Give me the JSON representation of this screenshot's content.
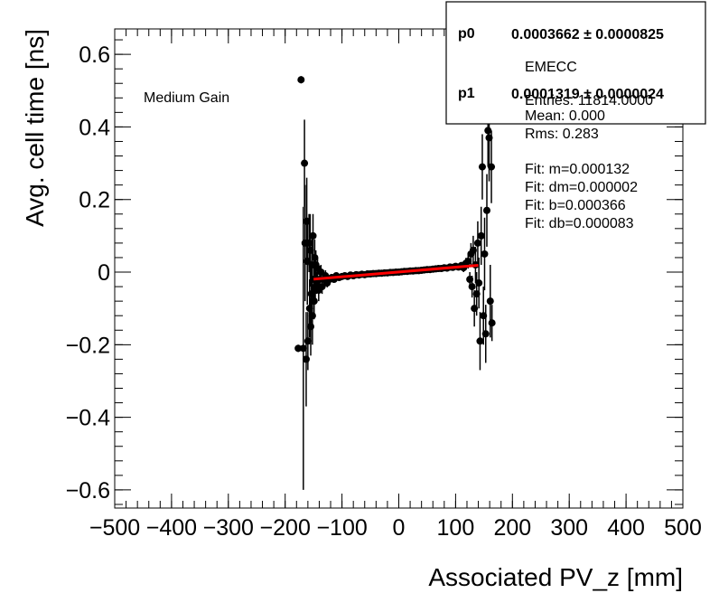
{
  "chart_data": {
    "type": "scatter",
    "title": "",
    "xlabel": "Associated PV_z [mm]",
    "ylabel": "Avg. cell time [ns]",
    "xlim": [
      -500,
      500
    ],
    "ylim": [
      -0.65,
      0.67
    ],
    "x_ticks": [
      -500,
      -400,
      -300,
      -200,
      -100,
      0,
      100,
      200,
      300,
      400,
      500
    ],
    "x_tick_labels": [
      "−500",
      "−400",
      "−300",
      "−200",
      "−100",
      "0",
      "100",
      "200",
      "300",
      "400",
      "500"
    ],
    "y_ticks": [
      -0.6,
      -0.4,
      -0.2,
      0,
      0.2,
      0.4,
      0.6
    ],
    "y_tick_labels": [
      "−0.6",
      "−0.4",
      "−0.2",
      "0",
      "0.2",
      "0.4",
      "0.6"
    ],
    "grid": false,
    "annotation": "Medium Gain",
    "series": [
      {
        "type": "points_with_errors",
        "color": "#000000",
        "points": [
          {
            "x": -177,
            "y": -0.21,
            "err": 0.01
          },
          {
            "x": -172,
            "y": 0.53,
            "err": 0.01
          },
          {
            "x": -168,
            "y": -0.21,
            "err": 0.39
          },
          {
            "x": -166,
            "y": 0.3,
            "err": 0.12
          },
          {
            "x": -165,
            "y": 0.08,
            "err": 0.16
          },
          {
            "x": -163,
            "y": -0.24,
            "err": 0.13
          },
          {
            "x": -162,
            "y": 0.14,
            "err": 0.12
          },
          {
            "x": -161,
            "y": 0.03,
            "err": 0.12
          },
          {
            "x": -160,
            "y": -0.19,
            "err": 0.08
          },
          {
            "x": -158,
            "y": 0.08,
            "err": 0.08
          },
          {
            "x": -157,
            "y": -0.1,
            "err": 0.08
          },
          {
            "x": -156,
            "y": 0.06,
            "err": 0.1
          },
          {
            "x": -155,
            "y": -0.15,
            "err": 0.08
          },
          {
            "x": -154,
            "y": -0.06,
            "err": 0.08
          },
          {
            "x": -153,
            "y": 0.02,
            "err": 0.08
          },
          {
            "x": -152,
            "y": -0.12,
            "err": 0.08
          },
          {
            "x": -151,
            "y": 0.1,
            "err": 0.06
          },
          {
            "x": -150,
            "y": -0.02,
            "err": 0.06
          },
          {
            "x": -149,
            "y": -0.08,
            "err": 0.05
          },
          {
            "x": -148,
            "y": 0.04,
            "err": 0.05
          },
          {
            "x": -147,
            "y": -0.04,
            "err": 0.04
          },
          {
            "x": -146,
            "y": 0.02,
            "err": 0.04
          },
          {
            "x": -145,
            "y": -0.03,
            "err": 0.03
          },
          {
            "x": -143,
            "y": 0.01,
            "err": 0.03
          },
          {
            "x": -141,
            "y": -0.05,
            "err": 0.03
          },
          {
            "x": -139,
            "y": -0.02,
            "err": 0.02
          },
          {
            "x": -137,
            "y": 0.0,
            "err": 0.02
          },
          {
            "x": -135,
            "y": -0.04,
            "err": 0.02
          },
          {
            "x": -132,
            "y": -0.02,
            "err": 0.015
          },
          {
            "x": -129,
            "y": -0.01,
            "err": 0.015
          },
          {
            "x": -126,
            "y": -0.03,
            "err": 0.012
          },
          {
            "x": -122,
            "y": -0.02,
            "err": 0.01
          },
          {
            "x": -118,
            "y": -0.015,
            "err": 0.01
          },
          {
            "x": -114,
            "y": -0.02,
            "err": 0.008
          },
          {
            "x": -110,
            "y": -0.01,
            "err": 0.008
          },
          {
            "x": -105,
            "y": -0.015,
            "err": 0.006
          },
          {
            "x": -100,
            "y": -0.012,
            "err": 0.006
          },
          {
            "x": -95,
            "y": -0.01,
            "err": 0.005
          },
          {
            "x": -90,
            "y": -0.012,
            "err": 0.005
          },
          {
            "x": -85,
            "y": -0.008,
            "err": 0.005
          },
          {
            "x": -80,
            "y": -0.01,
            "err": 0.004
          },
          {
            "x": -75,
            "y": -0.007,
            "err": 0.004
          },
          {
            "x": -70,
            "y": -0.008,
            "err": 0.004
          },
          {
            "x": -65,
            "y": -0.006,
            "err": 0.004
          },
          {
            "x": -60,
            "y": -0.007,
            "err": 0.004
          },
          {
            "x": -55,
            "y": -0.005,
            "err": 0.004
          },
          {
            "x": -50,
            "y": -0.005,
            "err": 0.004
          },
          {
            "x": -45,
            "y": -0.004,
            "err": 0.004
          },
          {
            "x": -40,
            "y": -0.004,
            "err": 0.004
          },
          {
            "x": -35,
            "y": -0.003,
            "err": 0.004
          },
          {
            "x": -30,
            "y": -0.003,
            "err": 0.004
          },
          {
            "x": -25,
            "y": -0.002,
            "err": 0.004
          },
          {
            "x": -20,
            "y": -0.002,
            "err": 0.004
          },
          {
            "x": -15,
            "y": -0.001,
            "err": 0.004
          },
          {
            "x": -10,
            "y": -0.001,
            "err": 0.004
          },
          {
            "x": -5,
            "y": 0.0,
            "err": 0.004
          },
          {
            "x": 0,
            "y": 0.0,
            "err": 0.004
          },
          {
            "x": 5,
            "y": 0.001,
            "err": 0.004
          },
          {
            "x": 10,
            "y": 0.002,
            "err": 0.004
          },
          {
            "x": 15,
            "y": 0.002,
            "err": 0.004
          },
          {
            "x": 20,
            "y": 0.003,
            "err": 0.004
          },
          {
            "x": 25,
            "y": 0.003,
            "err": 0.004
          },
          {
            "x": 30,
            "y": 0.004,
            "err": 0.004
          },
          {
            "x": 35,
            "y": 0.004,
            "err": 0.004
          },
          {
            "x": 40,
            "y": 0.005,
            "err": 0.004
          },
          {
            "x": 45,
            "y": 0.006,
            "err": 0.004
          },
          {
            "x": 50,
            "y": 0.007,
            "err": 0.004
          },
          {
            "x": 55,
            "y": 0.007,
            "err": 0.004
          },
          {
            "x": 60,
            "y": 0.008,
            "err": 0.004
          },
          {
            "x": 65,
            "y": 0.009,
            "err": 0.004
          },
          {
            "x": 70,
            "y": 0.01,
            "err": 0.004
          },
          {
            "x": 75,
            "y": 0.01,
            "err": 0.005
          },
          {
            "x": 80,
            "y": 0.012,
            "err": 0.005
          },
          {
            "x": 85,
            "y": 0.011,
            "err": 0.005
          },
          {
            "x": 90,
            "y": 0.014,
            "err": 0.006
          },
          {
            "x": 95,
            "y": 0.013,
            "err": 0.006
          },
          {
            "x": 100,
            "y": 0.016,
            "err": 0.008
          },
          {
            "x": 105,
            "y": 0.014,
            "err": 0.008
          },
          {
            "x": 110,
            "y": 0.018,
            "err": 0.01
          },
          {
            "x": 114,
            "y": 0.012,
            "err": 0.012
          },
          {
            "x": 118,
            "y": 0.024,
            "err": 0.015
          },
          {
            "x": 122,
            "y": 0.03,
            "err": 0.02
          },
          {
            "x": 125,
            "y": -0.02,
            "err": 0.02
          },
          {
            "x": 127,
            "y": 0.05,
            "err": 0.03
          },
          {
            "x": 129,
            "y": -0.04,
            "err": 0.03
          },
          {
            "x": 131,
            "y": 0.06,
            "err": 0.04
          },
          {
            "x": 133,
            "y": -0.1,
            "err": 0.05
          },
          {
            "x": 135,
            "y": 0.02,
            "err": 0.05
          },
          {
            "x": 137,
            "y": -0.06,
            "err": 0.06
          },
          {
            "x": 139,
            "y": 0.08,
            "err": 0.06
          },
          {
            "x": 141,
            "y": -0.03,
            "err": 0.07
          },
          {
            "x": 143,
            "y": -0.19,
            "err": 0.08
          },
          {
            "x": 145,
            "y": 0.1,
            "err": 0.08
          },
          {
            "x": 147,
            "y": 0.29,
            "err": 0.09
          },
          {
            "x": 149,
            "y": -0.12,
            "err": 0.08
          },
          {
            "x": 151,
            "y": 0.05,
            "err": 0.1
          },
          {
            "x": 153,
            "y": -0.17,
            "err": 0.08
          },
          {
            "x": 155,
            "y": 0.17,
            "err": 0.1
          },
          {
            "x": 157,
            "y": 0.39,
            "err": 0.1
          },
          {
            "x": 159,
            "y": 0.37,
            "err": 0.12
          },
          {
            "x": 161,
            "y": -0.08,
            "err": 0.1
          },
          {
            "x": 163,
            "y": 0.29,
            "err": 0.1
          },
          {
            "x": 164,
            "y": -0.14,
            "err": 0.05
          }
        ]
      }
    ],
    "fit_line": {
      "color": "#ff0000",
      "x_start": -150,
      "x_end": 140,
      "slope": 0.0001319,
      "intercept": 0.0003662
    }
  },
  "stats_box": {
    "fit_params": [
      {
        "name": "p0",
        "value": "0.0003662 ± 0.0000825"
      },
      {
        "name": "p1",
        "value": "0.0001319 ± 0.0000024"
      }
    ],
    "region": "EMECC",
    "lines": [
      "Entries: 11814.0000",
      "Mean: 0.000",
      "Rms: 0.283",
      "",
      "Fit: m=0.000132",
      "Fit: dm=0.000002",
      "Fit: b=0.000366",
      "Fit: db=0.000083"
    ]
  }
}
